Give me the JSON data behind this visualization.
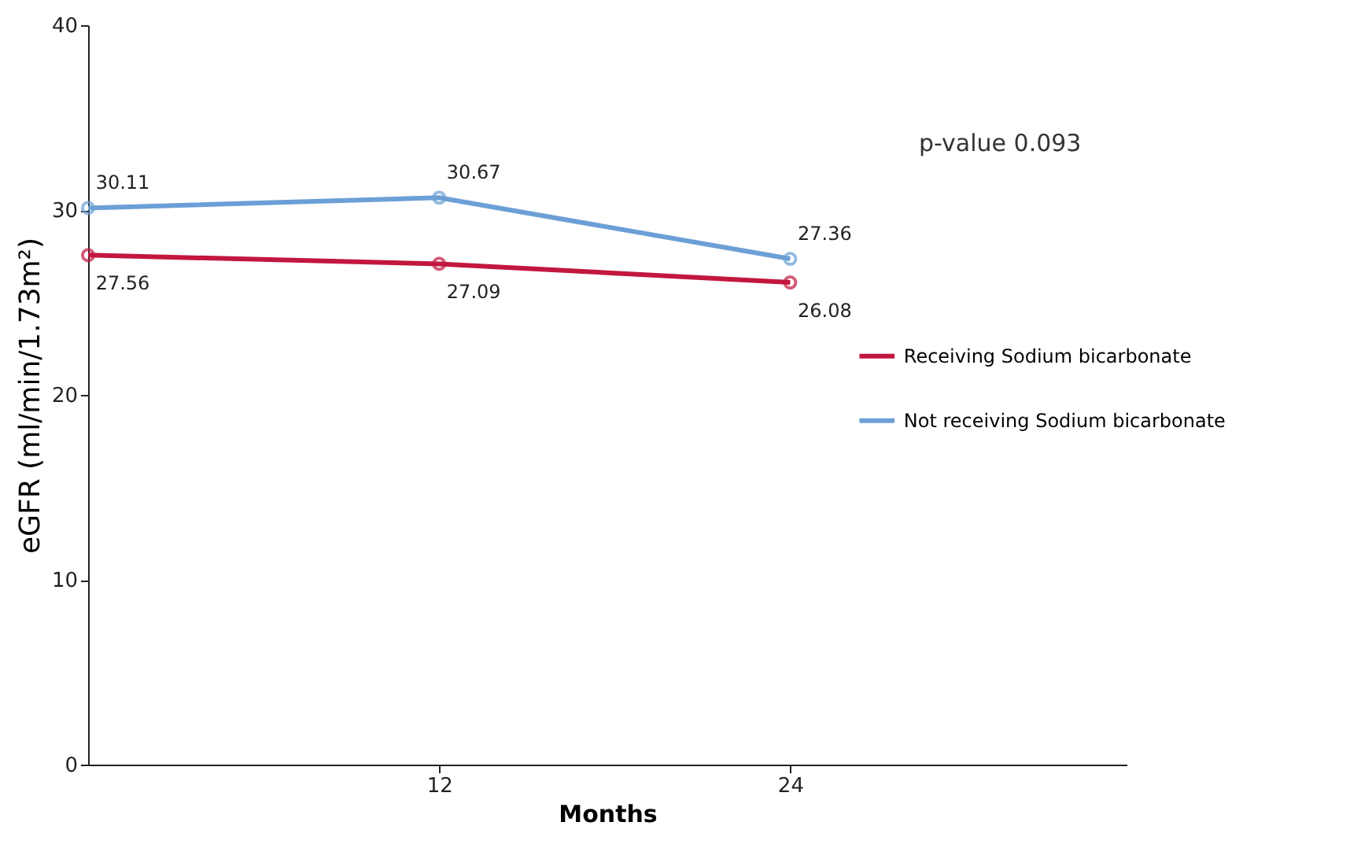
{
  "chart_data": {
    "type": "line",
    "xlabel": "Months",
    "ylabel": "eGFR (ml/min/1.73m²)",
    "x": [
      0,
      12,
      24
    ],
    "xlim": [
      0,
      35.5
    ],
    "xticks": [
      12,
      24
    ],
    "ylim": [
      0,
      40
    ],
    "yticks": [
      0,
      10,
      20,
      30,
      40
    ],
    "series": [
      {
        "name": "Receiving Sodium bicarbonate",
        "color": "#c2173f",
        "values": [
          27.56,
          27.09,
          26.08
        ]
      },
      {
        "name": "Not receiving Sodium bicarbonate",
        "color": "#6c9fd6",
        "values": [
          30.11,
          30.67,
          27.36
        ]
      }
    ],
    "data_labels": true,
    "marker": "circle",
    "grid": false,
    "legend": "right",
    "annotations": [
      "p-value 0.093"
    ]
  }
}
